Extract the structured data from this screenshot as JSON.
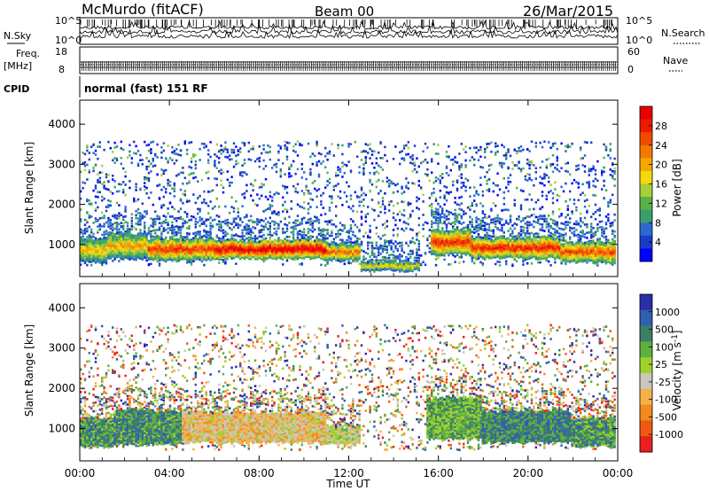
{
  "header": {
    "station": "McMurdo (fitACF)",
    "beam": "Beam 00",
    "date": "26/Mar/2015",
    "cpid_label": "CPID",
    "cpid_value": "normal (fast) 151 RF"
  },
  "chart_data": [
    {
      "type": "line",
      "name": "noise",
      "left_label": "N.Sky",
      "right_label": "N.Search",
      "left_ticks": [
        "10^5",
        "10^0"
      ],
      "right_ticks": [
        "10^5",
        "10^0"
      ]
    },
    {
      "type": "line",
      "name": "freq-nave",
      "left_label_1": "Freq.",
      "left_label_2": "[MHz]",
      "right_label": "Nave",
      "left_ticks": [
        "18",
        "8"
      ],
      "right_ticks": [
        "60",
        "0"
      ]
    },
    {
      "type": "heatmap",
      "name": "power",
      "ylabel": "Slant Range [km]",
      "ylim": [
        200,
        4600
      ],
      "yticks": [
        1000,
        2000,
        3000,
        4000
      ],
      "xlim": [
        0,
        24
      ],
      "colorbar": {
        "label": "Power [dB]",
        "ticks": [
          "4",
          "8",
          "12",
          "16",
          "20",
          "24",
          "28"
        ],
        "colors": [
          "#0000ff",
          "#1a3cc8",
          "#2b6bd0",
          "#3a9e6c",
          "#59b04a",
          "#a6cf3a",
          "#f2d80c",
          "#f5a600",
          "#f27a00",
          "#f04a00",
          "#f01a00",
          "#e80000"
        ]
      },
      "bands": [
        {
          "t0": 0.0,
          "t1": 1.2,
          "r0": 600,
          "r1": 1200,
          "level": 0.55
        },
        {
          "t0": 1.2,
          "t1": 3.0,
          "r0": 700,
          "r1": 1300,
          "level": 0.6
        },
        {
          "t0": 3.0,
          "t1": 6.0,
          "r0": 650,
          "r1": 1200,
          "level": 0.78
        },
        {
          "t0": 6.0,
          "t1": 11.0,
          "r0": 700,
          "r1": 1150,
          "level": 0.92
        },
        {
          "t0": 11.0,
          "t1": 12.5,
          "r0": 650,
          "r1": 1050,
          "level": 0.7
        },
        {
          "t0": 12.5,
          "t1": 15.2,
          "r0": 400,
          "r1": 600,
          "level": 0.55
        },
        {
          "t0": 15.7,
          "t1": 17.5,
          "r0": 800,
          "r1": 1400,
          "level": 0.8
        },
        {
          "t0": 17.5,
          "t1": 21.5,
          "r0": 700,
          "r1": 1200,
          "level": 0.82
        },
        {
          "t0": 21.5,
          "t1": 24.0,
          "r0": 600,
          "r1": 1100,
          "level": 0.75
        }
      ]
    },
    {
      "type": "heatmap",
      "name": "velocity",
      "ylabel": "Slant Range [km]",
      "ylim": [
        200,
        4600
      ],
      "yticks": [
        1000,
        2000,
        3000,
        4000
      ],
      "xlim": [
        0,
        24
      ],
      "xticks": [
        "00:00",
        "04:00",
        "08:00",
        "12:00",
        "16:00",
        "20:00",
        "00:00"
      ],
      "xlabel": "Time UT",
      "colorbar": {
        "label": "Velocity [m s-1]",
        "ticks": [
          "1000",
          "500",
          "100",
          "25",
          "-25",
          "-100",
          "-500",
          "-1000"
        ],
        "colors": [
          "#2a2ea8",
          "#2f5fb0",
          "#3a7f66",
          "#5fb03d",
          "#9ed12e",
          "#c8c8bc",
          "#f5b04a",
          "#f28a20",
          "#f05a10",
          "#e82020"
        ]
      },
      "bands": [
        {
          "t0": 0.0,
          "t1": 1.5,
          "r0": 600,
          "r1": 1300,
          "level": 0.3
        },
        {
          "t0": 1.5,
          "t1": 4.5,
          "r0": 650,
          "r1": 1500,
          "level": 0.28
        },
        {
          "t0": 4.5,
          "t1": 11.0,
          "r0": 700,
          "r1": 1450,
          "level": 0.6
        },
        {
          "t0": 11.0,
          "t1": 12.5,
          "r0": 650,
          "r1": 1100,
          "level": 0.5
        },
        {
          "t0": 15.5,
          "t1": 18.0,
          "r0": 800,
          "r1": 1800,
          "level": 0.35
        },
        {
          "t0": 18.0,
          "t1": 22.0,
          "r0": 700,
          "r1": 1500,
          "level": 0.25
        },
        {
          "t0": 22.0,
          "t1": 24.0,
          "r0": 600,
          "r1": 1300,
          "level": 0.3
        }
      ]
    }
  ]
}
